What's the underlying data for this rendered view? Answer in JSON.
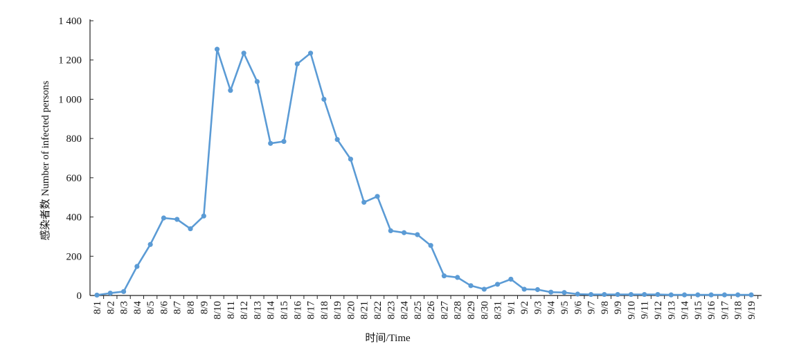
{
  "chart_data": {
    "type": "line",
    "title": "",
    "xlabel": "时间/Time",
    "ylabel": "感染者数 Number of infected persons",
    "ylim": [
      0,
      1400
    ],
    "yticks": [
      0,
      200,
      400,
      600,
      800,
      1000,
      1200,
      1400
    ],
    "ytick_labels": [
      "0",
      "200",
      "400",
      "600",
      "800",
      "1 000",
      "1 200",
      "1 400"
    ],
    "grid": false,
    "legend": "none",
    "colors": {
      "line": "#5b9bd5",
      "axis": "#222222"
    },
    "categories": [
      "8/1",
      "8/2",
      "8/3",
      "8/4",
      "8/5",
      "8/6",
      "8/7",
      "8/8",
      "8/9",
      "8/10",
      "8/11",
      "8/12",
      "8/13",
      "8/14",
      "8/15",
      "8/16",
      "8/17",
      "8/18",
      "8/19",
      "8/20",
      "8/21",
      "8/22",
      "8/23",
      "8/24",
      "8/25",
      "8/26",
      "8/27",
      "8/28",
      "8/29",
      "8/30",
      "8/31",
      "9/1",
      "9/2",
      "9/3",
      "9/4",
      "9/5",
      "9/6",
      "9/7",
      "9/8",
      "9/9",
      "9/10",
      "9/11",
      "9/12",
      "9/13",
      "9/14",
      "9/15",
      "9/16",
      "9/17",
      "9/18",
      "9/19"
    ],
    "series": [
      {
        "values": [
          2,
          12,
          20,
          148,
          260,
          395,
          388,
          340,
          405,
          1255,
          1045,
          1235,
          1090,
          775,
          785,
          1180,
          1235,
          1000,
          795,
          695,
          475,
          505,
          330,
          320,
          310,
          255,
          100,
          92,
          50,
          32,
          57,
          83,
          32,
          30,
          17,
          15,
          7,
          5,
          5,
          5,
          5,
          5,
          5,
          3,
          3,
          3,
          3,
          3,
          3,
          3
        ]
      }
    ]
  }
}
